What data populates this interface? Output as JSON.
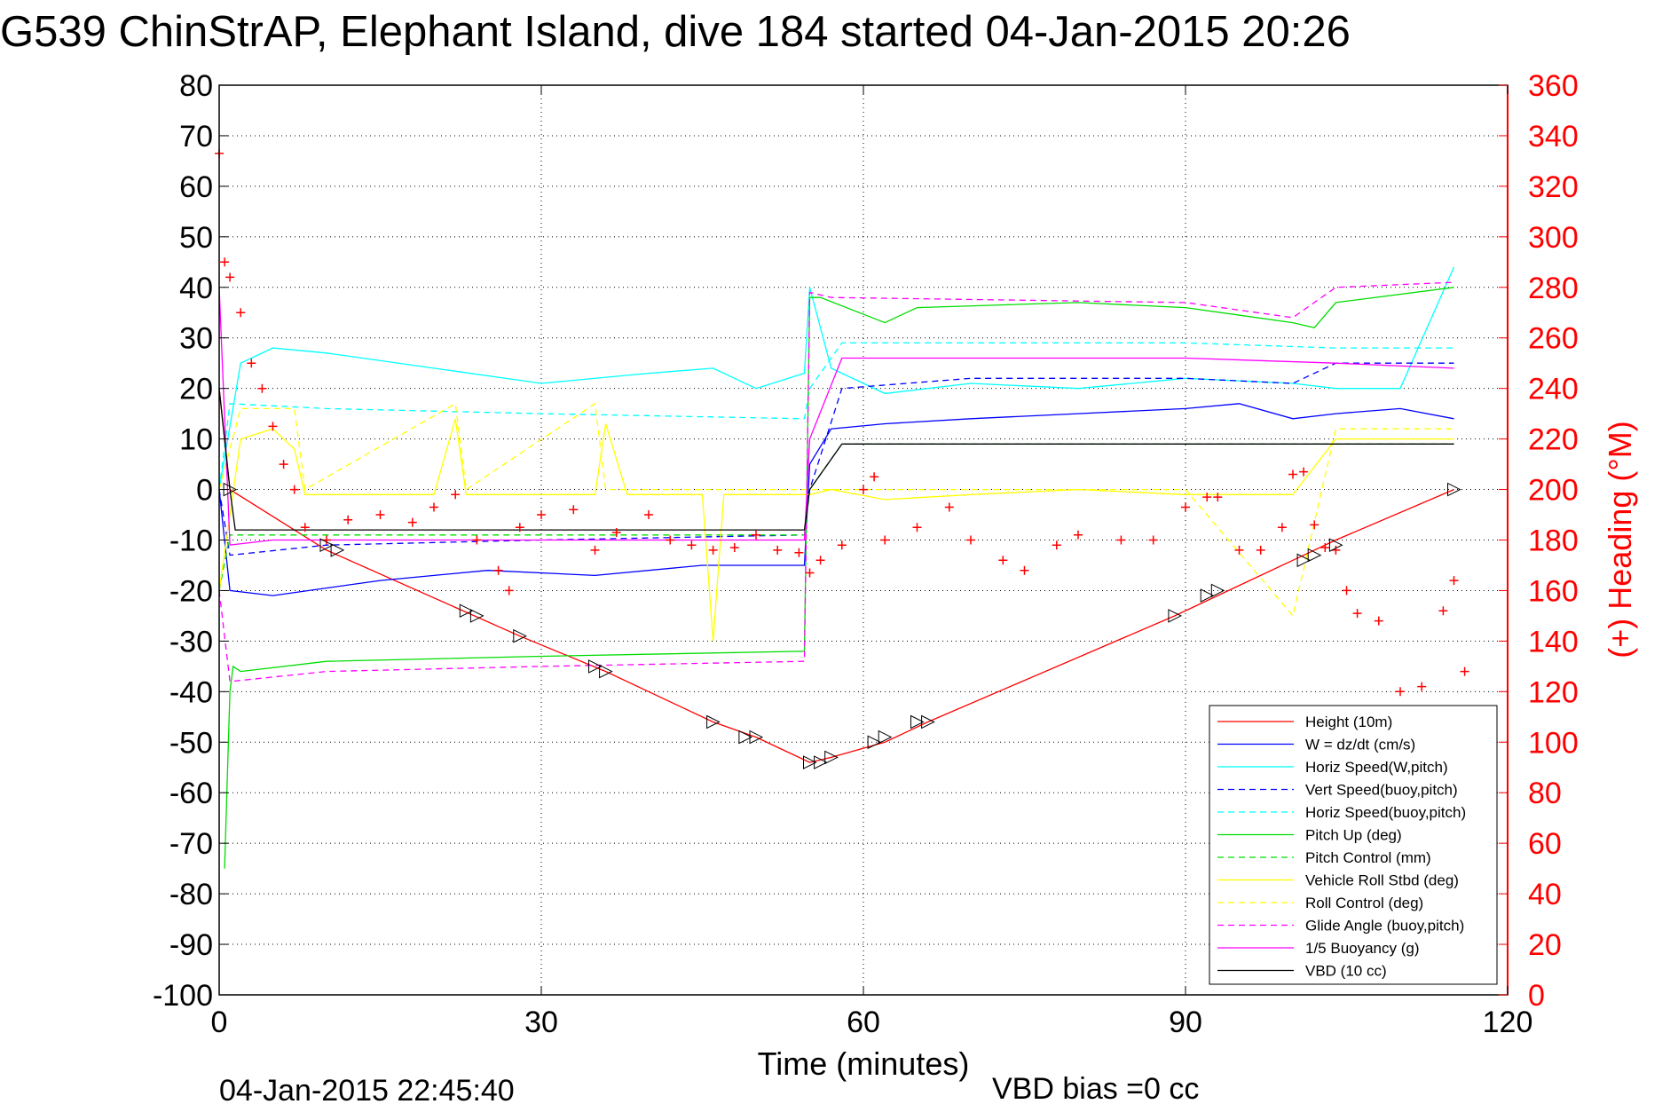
{
  "chart_data": {
    "type": "line",
    "title": "G539 ChinStrAP, Elephant Island, dive 184 started 04-Jan-2015 20:26",
    "xlabel": "Time (minutes)",
    "ylabel_right": "(+) Heading (°M)",
    "xlim": [
      0,
      120
    ],
    "ylim": [
      -100,
      80
    ],
    "ylim_right": [
      0,
      360
    ],
    "x_ticks": [
      "0",
      "30",
      "60",
      "90",
      "120"
    ],
    "y_ticks": [
      "80",
      "70",
      "60",
      "50",
      "40",
      "30",
      "20",
      "10",
      "0",
      "-10",
      "-20",
      "-30",
      "-40",
      "-50",
      "-60",
      "-70",
      "-80",
      "-90",
      "-100"
    ],
    "y_right_ticks": [
      "360",
      "340",
      "320",
      "300",
      "280",
      "260",
      "240",
      "220",
      "200",
      "180",
      "160",
      "140",
      "120",
      "100",
      "80",
      "60",
      "40",
      "20",
      "0"
    ],
    "grid": true,
    "legend_position": "bottom-right",
    "footer_left": "04-Jan-2015 22:45:40",
    "footer_right": "VBD bias =0 cc",
    "series": [
      {
        "name": "Height (10m)",
        "color": "#ff0000",
        "style": "solid",
        "x": [
          0,
          1,
          10,
          28,
          36,
          46,
          50,
          55,
          57,
          62,
          66,
          89,
          93,
          100,
          104,
          115
        ],
        "y": [
          20,
          0,
          -12,
          -29,
          -36,
          -46,
          -49,
          -54,
          -53,
          -50,
          -46,
          -25,
          -21,
          -14,
          -10,
          0
        ]
      },
      {
        "name": "W = dz/dt (cm/s)",
        "color": "#0000ff",
        "style": "solid",
        "x": [
          0,
          1,
          5,
          15,
          25,
          35,
          45,
          54.5,
          55,
          57,
          62,
          70,
          80,
          90,
          95,
          100,
          104,
          110,
          115
        ],
        "y": [
          0,
          -20,
          -21,
          -18,
          -16,
          -17,
          -15,
          -15,
          5,
          12,
          13,
          14,
          15,
          16,
          17,
          14,
          15,
          16,
          14
        ]
      },
      {
        "name": "Horiz Speed(W,pitch)",
        "color": "#00ffff",
        "style": "solid",
        "x": [
          0,
          2,
          5,
          10,
          20,
          30,
          40,
          46,
          50,
          54.5,
          55,
          57,
          62,
          70,
          80,
          90,
          100,
          104,
          110,
          115
        ],
        "y": [
          0,
          25,
          28,
          27,
          24,
          21,
          23,
          24,
          20,
          23,
          40,
          24,
          19,
          21,
          20,
          22,
          21,
          20,
          20,
          44
        ]
      },
      {
        "name": "Vert Speed(buoy,pitch)",
        "color": "#0000ff",
        "style": "dashed",
        "x": [
          0,
          1,
          10,
          30,
          54.5,
          55,
          58,
          70,
          90,
          100,
          104,
          115
        ],
        "y": [
          0,
          -13,
          -11,
          -10,
          -9,
          0,
          20,
          22,
          22,
          21,
          25,
          25
        ]
      },
      {
        "name": "Horiz Speed(buoy,pitch)",
        "color": "#00ffff",
        "style": "dashed",
        "x": [
          0,
          1,
          10,
          30,
          54.5,
          55,
          58,
          90,
          104,
          115
        ],
        "y": [
          0,
          17,
          16,
          15,
          14,
          20,
          29,
          29,
          28,
          28
        ]
      },
      {
        "name": "Pitch Up (deg)",
        "color": "#00dd00",
        "style": "solid",
        "x": [
          0.5,
          1,
          1.3,
          2,
          10,
          30,
          54.5,
          55,
          56,
          62,
          65,
          80,
          90,
          100,
          102,
          104,
          115
        ],
        "y": [
          -75,
          -40,
          -35,
          -36,
          -34,
          -33,
          -32,
          38,
          38,
          33,
          36,
          37,
          36,
          33,
          32,
          37,
          40
        ]
      },
      {
        "name": "Pitch Control (mm)",
        "color": "#00dd00",
        "style": "dashed",
        "x": [
          0,
          1,
          10,
          54.5,
          55,
          58,
          90,
          115
        ],
        "y": [
          -20,
          -9,
          -9,
          -9,
          0,
          9,
          9,
          9
        ]
      },
      {
        "name": "Vehicle Roll Stbd (deg)",
        "color": "#ffff00",
        "style": "solid",
        "x": [
          0,
          2,
          5,
          7,
          8,
          20,
          22,
          23,
          25,
          35,
          36,
          38,
          45,
          46,
          47,
          50,
          55,
          57,
          62,
          70,
          80,
          90,
          100,
          104,
          115
        ],
        "y": [
          -20,
          10,
          12,
          8,
          -1,
          -1,
          14,
          -1,
          -1,
          -1,
          13,
          -1,
          -1,
          -30,
          -1,
          -1,
          -1,
          0,
          -2,
          -1,
          0,
          -1,
          -1,
          10,
          10
        ]
      },
      {
        "name": "Roll Control (deg)",
        "color": "#ffff00",
        "style": "dashed",
        "x": [
          0,
          2,
          7,
          8,
          22,
          23,
          35,
          36,
          45,
          55,
          62,
          70,
          90,
          100,
          104,
          115
        ],
        "y": [
          0,
          16,
          16,
          0,
          17,
          0,
          17,
          0,
          0,
          0,
          0,
          0,
          0,
          -25,
          12,
          12
        ]
      },
      {
        "name": "Glide Angle (buoy,pitch)",
        "color": "#ff00ff",
        "style": "dashed",
        "x": [
          0,
          1,
          10,
          30,
          54.5,
          55,
          57,
          90,
          100,
          104,
          115
        ],
        "y": [
          -20,
          -38,
          -36,
          -35,
          -34,
          39,
          38,
          37,
          34,
          40,
          41
        ]
      },
      {
        "name": "1/5 Buoyancy (g)",
        "color": "#ff00ff",
        "style": "solid",
        "x": [
          0,
          1,
          5,
          54.5,
          55,
          58,
          90,
          104,
          115
        ],
        "y": [
          40,
          -11,
          -10,
          -10,
          10,
          26,
          26,
          25,
          24
        ]
      },
      {
        "name": "VBD (10 cc)",
        "color": "#000000",
        "style": "solid",
        "x": [
          0,
          1,
          1.5,
          54.5,
          55,
          58,
          115
        ],
        "y": [
          20,
          0,
          -8,
          -8,
          0,
          9,
          9
        ]
      }
    ],
    "heading_series": {
      "name": "(+) Heading",
      "color": "#ff0000",
      "axis": "right",
      "x": [
        0,
        0.5,
        1,
        2,
        3,
        4,
        5,
        6,
        7,
        8,
        10,
        12,
        15,
        18,
        20,
        22,
        24,
        26,
        27,
        28,
        30,
        33,
        35,
        37,
        40,
        42,
        44,
        46,
        48,
        50,
        52,
        54,
        55,
        56,
        58,
        60,
        61,
        62,
        65,
        68,
        70,
        73,
        75,
        78,
        80,
        84,
        87,
        90,
        92,
        93,
        95,
        97,
        99,
        100,
        101,
        102,
        103,
        104,
        105,
        106,
        108,
        110,
        112,
        114,
        115,
        116
      ],
      "y": [
        333,
        290,
        284,
        270,
        250,
        240,
        225,
        210,
        200,
        185,
        180,
        188,
        190,
        187,
        193,
        198,
        180,
        168,
        160,
        185,
        190,
        192,
        176,
        183,
        190,
        180,
        178,
        176,
        177,
        182,
        176,
        175,
        167,
        172,
        178,
        200,
        205,
        180,
        185,
        193,
        180,
        172,
        168,
        178,
        182,
        180,
        180,
        193,
        197,
        197,
        176,
        176,
        185,
        206,
        207,
        186,
        177,
        176,
        160,
        151,
        148,
        120,
        122,
        152,
        164,
        128
      ]
    },
    "markers": {
      "x": [
        1,
        10,
        11,
        23,
        24,
        28,
        35,
        36,
        46,
        49,
        50,
        55,
        56,
        57,
        61,
        62,
        65,
        66,
        89,
        92,
        93,
        101,
        102,
        104,
        115
      ],
      "y": [
        0,
        -11,
        -12,
        -24,
        -25,
        -29,
        -35,
        -36,
        -46,
        -49,
        -49,
        -54,
        -54,
        -53,
        -50,
        -49,
        -46,
        -46,
        -25,
        -21,
        -20,
        -14,
        -13,
        -11,
        0
      ]
    }
  }
}
